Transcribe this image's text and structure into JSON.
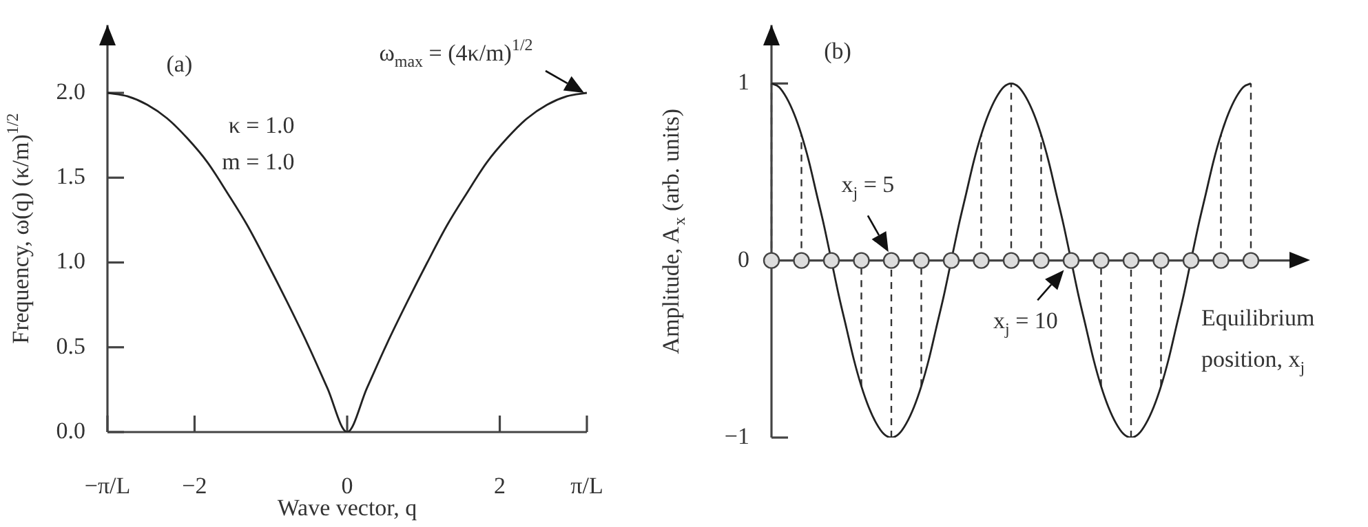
{
  "chart_data": [
    {
      "type": "line",
      "xlabel": "Wave vector, q",
      "ylabel": "Frequency, ω(q) (κ/m)$^{1/2}$",
      "xlim": [
        -3.1416,
        3.1416
      ],
      "xticks": [
        {
          "value": -3.1416,
          "label": "−π/L"
        },
        {
          "value": -2,
          "label": "−2"
        },
        0,
        2,
        {
          "value": 3.1416,
          "label": "π/L"
        }
      ],
      "ylim": [
        0,
        2.4
      ],
      "yticks": [
        {
          "value": 0,
          "label": "0.0"
        },
        {
          "value": 0.5,
          "label": "0.5"
        },
        {
          "value": 1,
          "label": "1.0"
        },
        {
          "value": 1.5,
          "label": "1.5"
        },
        {
          "value": 2,
          "label": "2.0"
        }
      ],
      "series": [
        {
          "color": "#222222",
          "x": [
            -3.1416,
            -2.88,
            -2.62,
            -2.36,
            -2.09,
            -1.83,
            -1.57,
            -1.31,
            -1.05,
            -0.79,
            -0.52,
            -0.26,
            0,
            0.26,
            0.52,
            0.79,
            1.05,
            1.31,
            1.57,
            1.83,
            2.09,
            2.36,
            2.62,
            2.88,
            3.1416
          ],
          "values": [
            2,
            1.98,
            1.93,
            1.85,
            1.73,
            1.59,
            1.41,
            1.22,
            1,
            0.77,
            0.52,
            0.26,
            0,
            0.26,
            0.52,
            0.77,
            1,
            1.22,
            1.41,
            1.59,
            1.73,
            1.85,
            1.93,
            1.98,
            2
          ]
        }
      ],
      "annotations": [
        "(a)",
        "κ = 1.0",
        "m = 1.0",
        {
          "text": "ω$_{max}$ = (4κ/m)$^{1/2}$",
          "x": 3.1416,
          "y": 2
        }
      ]
    },
    {
      "type": "line",
      "xlabel": "Equilibrium position, x$_{j}$",
      "ylabel": "Amplitude, A$_{x}$ (arb. units)",
      "tick_labels": "y",
      "categories": [
        null,
        null,
        null,
        null,
        null,
        null,
        null,
        null,
        null,
        null,
        null,
        null,
        null,
        null,
        null,
        null,
        null,
        null,
        null,
        null,
        null,
        null,
        null,
        null,
        null,
        null,
        null,
        null,
        null,
        null,
        null,
        null,
        null,
        null,
        null,
        null,
        null,
        null,
        null,
        null,
        null,
        null,
        null,
        null,
        null,
        null,
        null,
        null,
        null,
        null,
        null,
        null,
        null,
        null,
        null,
        null,
        null,
        null,
        null,
        null,
        null,
        null,
        null,
        null,
        null
      ],
      "ylim": [
        -1,
        1.33
      ],
      "yticks": [
        1,
        0,
        {
          "value": -1,
          "label": "−1"
        }
      ],
      "series": [
        {
          "color": "#222222",
          "values": [
            1,
            0.98,
            0.92,
            0.83,
            0.71,
            0.56,
            0.38,
            0.2,
            0,
            -0.2,
            -0.38,
            -0.56,
            -0.71,
            -0.83,
            -0.92,
            -0.98,
            -1,
            -0.98,
            -0.92,
            -0.83,
            -0.71,
            -0.56,
            -0.38,
            -0.2,
            0,
            0.2,
            0.38,
            0.56,
            0.71,
            0.83,
            0.92,
            0.98,
            1,
            0.98,
            0.92,
            0.83,
            0.71,
            0.56,
            0.38,
            0.2,
            0,
            -0.2,
            -0.38,
            -0.56,
            -0.71,
            -0.83,
            -0.92,
            -0.98,
            -1,
            -0.98,
            -0.92,
            -0.83,
            -0.71,
            -0.56,
            -0.38,
            -0.2,
            0,
            0.2,
            0.38,
            0.56,
            0.71,
            0.83,
            0.92,
            0.98,
            1
          ]
        },
        {
          "type": "scatter",
          "marker": "circle",
          "color": "#dddddd",
          "line_style": "dashed",
          "errors": [
            [
              0,
              1
            ],
            null,
            null,
            null,
            [
              0,
              0.71
            ],
            null,
            null,
            null,
            null,
            null,
            null,
            null,
            [
              -0.71,
              0
            ],
            null,
            null,
            null,
            [
              -1,
              0
            ],
            null,
            null,
            null,
            [
              -0.71,
              0
            ],
            null,
            null,
            null,
            null,
            null,
            null,
            null,
            [
              0,
              0.71
            ],
            null,
            null,
            null,
            [
              0,
              1
            ],
            null,
            null,
            null,
            [
              0,
              0.71
            ],
            null,
            null,
            null,
            null,
            null,
            null,
            null,
            [
              -0.71,
              0
            ],
            null,
            null,
            null,
            [
              -1,
              0
            ],
            null,
            null,
            null,
            [
              -0.71,
              0
            ],
            null,
            null,
            null,
            null,
            null,
            null,
            null,
            [
              0,
              0.71
            ],
            null,
            null,
            null,
            [
              0,
              1
            ]
          ],
          "values": [
            0,
            null,
            null,
            null,
            0,
            null,
            null,
            null,
            0,
            null,
            null,
            null,
            0,
            null,
            null,
            null,
            0,
            null,
            null,
            null,
            0,
            null,
            null,
            null,
            0,
            null,
            null,
            null,
            0,
            null,
            null,
            null,
            0,
            null,
            null,
            null,
            0,
            null,
            null,
            null,
            0,
            null,
            null,
            null,
            0,
            null,
            null,
            null,
            0,
            null,
            null,
            null,
            0,
            null,
            null,
            null,
            0,
            null,
            null,
            null,
            0,
            null,
            null,
            null,
            0
          ]
        }
      ],
      "annotations": [
        "(b)",
        "x$_{j}$ = 5",
        "x$_{j}$ = 10"
      ]
    }
  ]
}
